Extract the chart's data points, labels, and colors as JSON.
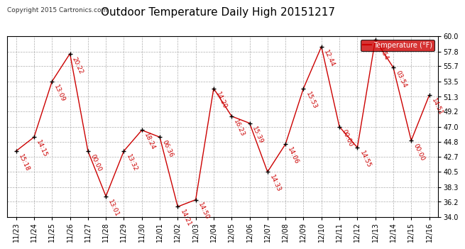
{
  "title": "Outdoor Temperature Daily High 20151217",
  "copyright": "Copyright 2015 Cartronics.com",
  "legend_label": "Temperature (°F)",
  "dates": [
    "11/23",
    "11/24",
    "11/25",
    "11/26",
    "11/27",
    "11/28",
    "11/29",
    "11/30",
    "12/01",
    "12/02",
    "12/03",
    "12/04",
    "12/05",
    "12/06",
    "12/07",
    "12/08",
    "12/09",
    "12/10",
    "12/11",
    "12/12",
    "12/13",
    "12/14",
    "12/15",
    "12/16"
  ],
  "temps": [
    43.5,
    45.5,
    53.5,
    57.5,
    43.5,
    37.0,
    43.5,
    46.5,
    45.5,
    35.5,
    36.5,
    52.5,
    48.5,
    47.5,
    40.5,
    44.5,
    52.5,
    58.5,
    47.0,
    44.0,
    59.5,
    55.5,
    45.0,
    51.5
  ],
  "times": [
    "15:18",
    "14:15",
    "13:09",
    "20:22",
    "00:00",
    "13:01",
    "13:32",
    "18:24",
    "06:36",
    "14:21",
    "14:50",
    "14:20",
    "16:23",
    "15:39",
    "14:33",
    "14:06",
    "15:53",
    "12:44",
    "00:00",
    "14:55",
    "03:54",
    "03:54",
    "00:00",
    "14:51"
  ],
  "ylim": [
    34.0,
    60.0
  ],
  "ytick_vals": [
    34.0,
    36.2,
    38.3,
    40.5,
    42.7,
    44.8,
    47.0,
    49.2,
    51.3,
    53.5,
    55.7,
    57.8,
    60.0
  ],
  "ytick_labels": [
    "34.0",
    "36.2",
    "38.3",
    "40.5",
    "42.7",
    "44.8",
    "47.0",
    "49.2",
    "51.3",
    "53.5",
    "55.7",
    "57.8",
    "60.0"
  ],
  "line_color": "#CC0000",
  "marker_color": "#000000",
  "bg_color": "#ffffff",
  "grid_color": "#999999",
  "title_fontsize": 11,
  "annotation_fontsize": 6.5,
  "annotation_color": "#CC0000",
  "legend_bg": "#CC0000",
  "legend_fg": "#ffffff",
  "tick_fontsize": 7,
  "copyright_fontsize": 6.5
}
